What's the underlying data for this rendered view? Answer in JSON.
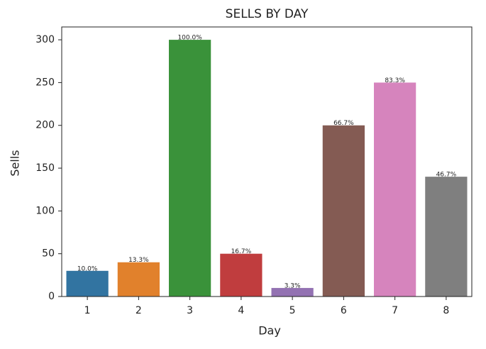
{
  "chart_data": {
    "type": "bar",
    "title": "SELLS BY DAY",
    "x_label": "Day",
    "y_label": "Sells",
    "categories": [
      "1",
      "2",
      "3",
      "4",
      "5",
      "6",
      "7",
      "8"
    ],
    "values": [
      30,
      40,
      300,
      50,
      10,
      200,
      250,
      140
    ],
    "value_labels": [
      "10.0%",
      "13.3%",
      "100.0%",
      "16.7%",
      "3.3%",
      "66.7%",
      "83.3%",
      "46.7%"
    ],
    "colors": [
      "#3274a1",
      "#e1812c",
      "#3a923a",
      "#c03d3e",
      "#9372b2",
      "#845b53",
      "#d684bd",
      "#7f7f7f"
    ],
    "ylim": [
      0,
      315
    ],
    "yticks": [
      0,
      50,
      100,
      150,
      200,
      250,
      300
    ],
    "grid": false
  }
}
